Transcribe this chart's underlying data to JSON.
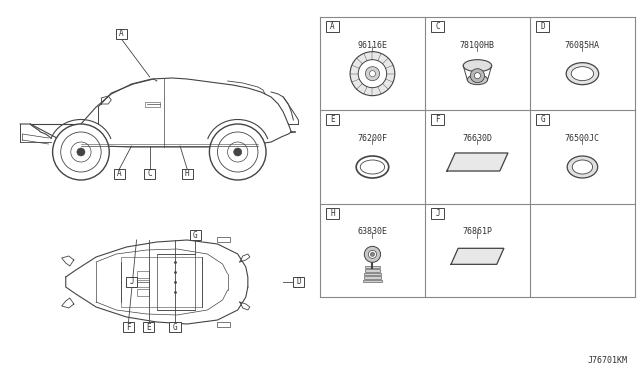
{
  "bg_color": "#ffffff",
  "border_color": "#888888",
  "line_color": "#444444",
  "text_color": "#333333",
  "fig_width": 6.4,
  "fig_height": 3.72,
  "diagram_title": "J76701KM",
  "parts": [
    {
      "label": "A",
      "code": "96116E",
      "col": 0,
      "row": 0,
      "shape": "ring_grommet"
    },
    {
      "label": "C",
      "code": "78100HB",
      "col": 1,
      "row": 0,
      "shape": "grommet_3d"
    },
    {
      "label": "D",
      "code": "76085HA",
      "col": 2,
      "row": 0,
      "shape": "oval_plug"
    },
    {
      "label": "E",
      "code": "76200F",
      "col": 0,
      "row": 1,
      "shape": "oval_ring"
    },
    {
      "label": "F",
      "code": "76630D",
      "col": 1,
      "row": 1,
      "shape": "rect_pad_large"
    },
    {
      "label": "G",
      "code": "76500JC",
      "col": 2,
      "row": 1,
      "shape": "oval_plug_sm"
    },
    {
      "label": "H",
      "code": "63830E",
      "col": 0,
      "row": 2,
      "shape": "clip"
    },
    {
      "label": "J",
      "code": "76861P",
      "col": 1,
      "row": 2,
      "shape": "rect_pad_small"
    }
  ]
}
